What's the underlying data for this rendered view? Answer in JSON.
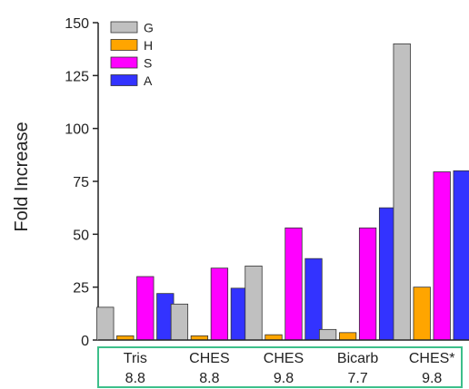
{
  "chart_data": {
    "type": "bar",
    "ylabel": "Fold Increase",
    "ylim": [
      0,
      150
    ],
    "yticks": [
      0,
      25,
      50,
      75,
      100,
      125,
      150
    ],
    "categories": [
      {
        "name": "Tris",
        "value": "8.8"
      },
      {
        "name": "CHES",
        "value": "8.8"
      },
      {
        "name": "CHES",
        "value": "9.8"
      },
      {
        "name": "Bicarb",
        "value": "7.7"
      },
      {
        "name": "CHES*",
        "value": "9.8"
      }
    ],
    "series": [
      {
        "name": "G",
        "color": "#c0c0c0",
        "values": [
          15.5,
          17,
          35,
          5,
          140
        ]
      },
      {
        "name": "H",
        "color": "#ffa500",
        "values": [
          2,
          2,
          2.5,
          3.5,
          25
        ]
      },
      {
        "name": "S",
        "color": "#ff00ff",
        "values": [
          30,
          34,
          53,
          53,
          79.5
        ]
      },
      {
        "name": "A",
        "color": "#3333ff",
        "values": [
          22,
          24.5,
          38.5,
          62.5,
          80
        ]
      }
    ],
    "legend_position": "top-left",
    "category_box_color": "#3dbf8a"
  }
}
